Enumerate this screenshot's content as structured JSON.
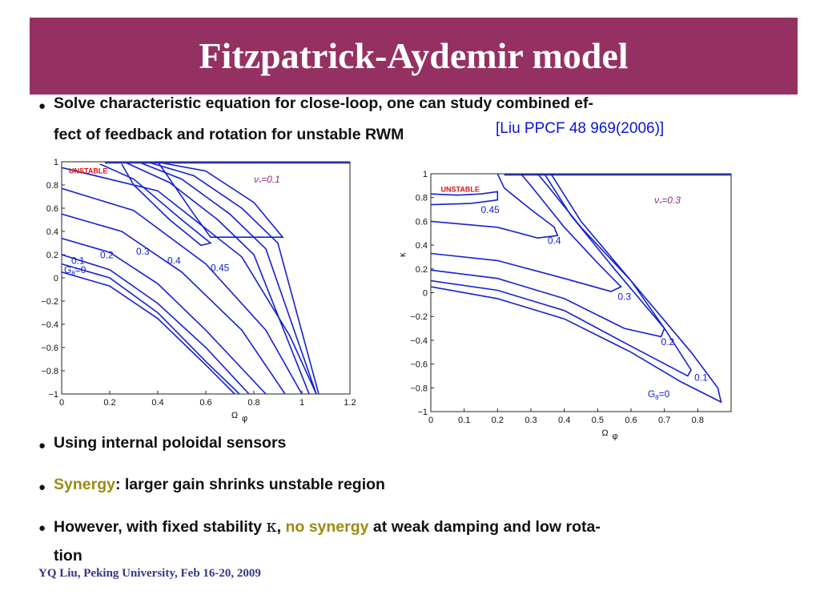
{
  "slide": {
    "title": "Fitzpatrick-Aydemir model",
    "bullets": [
      {
        "line1": "Solve characteristic equation for close-loop, one can study combined ef-",
        "line2": "fect of feedback and rotation for unstable RWM",
        "citation": "[Liu PPCF 48 969(2006)]"
      },
      {
        "text": "Using internal poloidal sensors"
      },
      {
        "highlight": "Synergy",
        "rest": ": larger gain shrinks unstable region"
      },
      {
        "pre": "However, with fixed stability ",
        "kappa": "κ",
        "comma": ",",
        "highlight": "no synergy",
        "post": " at weak damping and low rota-",
        "line2": "tion"
      }
    ],
    "footer": "YQ Liu, Peking University, Feb 16-20, 2009",
    "colors": {
      "title_bar": "#953162",
      "highlight": "#9c8a12",
      "citation": "#0a14d8",
      "curve": "#1521ce"
    }
  },
  "chart_data": [
    {
      "type": "line",
      "title": "",
      "xlabel": "Ω_φ",
      "ylabel": "",
      "xlim": [
        0,
        1.2
      ],
      "ylim": [
        -1,
        1
      ],
      "xticks": [
        "0",
        "0.2",
        "0.4",
        "0.6",
        "0.8",
        "1",
        "1.2"
      ],
      "yticks": [
        "−1",
        "−0.8",
        "−0.6",
        "−0.4",
        "−0.2",
        "0",
        "0.2",
        "0.4",
        "0.6",
        "0.8",
        "1"
      ],
      "annotations": {
        "region": "UNSTABLE",
        "nu": "ν",
        "nu_sub": "*",
        "nu_val": "=0.1",
        "gain_symbol": "G",
        "gain_sub": "θ",
        "gain_val": "=0"
      },
      "contour_labels": [
        {
          "label": "0.1",
          "x": 0.04,
          "y": 0.12
        },
        {
          "label": "0.2",
          "x": 0.16,
          "y": 0.17
        },
        {
          "label": "0.3",
          "x": 0.31,
          "y": 0.2
        },
        {
          "label": "0.4",
          "x": 0.44,
          "y": 0.12
        },
        {
          "label": "0.45",
          "x": 0.62,
          "y": 0.06
        }
      ],
      "series": [
        {
          "label": "0",
          "points": [
            [
              0,
              0.05
            ],
            [
              0.2,
              -0.07
            ],
            [
              0.4,
              -0.35
            ],
            [
              0.6,
              -0.75
            ],
            [
              0.72,
              -1
            ]
          ]
        },
        {
          "label": "0.1",
          "points": [
            [
              0,
              0.12
            ],
            [
              0.2,
              0.0
            ],
            [
              0.4,
              -0.3
            ],
            [
              0.6,
              -0.72
            ],
            [
              0.74,
              -1
            ]
          ]
        },
        {
          "label": "0.1b",
          "points": [
            [
              0,
              0.2
            ],
            [
              0.2,
              0.07
            ],
            [
              0.4,
              -0.22
            ],
            [
              0.6,
              -0.6
            ],
            [
              0.78,
              -1
            ]
          ]
        },
        {
          "label": "0.2",
          "points": [
            [
              0,
              0.34
            ],
            [
              0.2,
              0.22
            ],
            [
              0.4,
              -0.05
            ],
            [
              0.6,
              -0.45
            ],
            [
              0.85,
              -1
            ]
          ]
        },
        {
          "label": "0.3",
          "points": [
            [
              0,
              0.55
            ],
            [
              0.25,
              0.4
            ],
            [
              0.5,
              0.05
            ],
            [
              0.75,
              -0.45
            ],
            [
              0.93,
              -1
            ]
          ]
        },
        {
          "label": "0.4",
          "points": [
            [
              0,
              0.77
            ],
            [
              0.3,
              0.58
            ],
            [
              0.6,
              0.12
            ],
            [
              0.85,
              -0.45
            ],
            [
              1.0,
              -1
            ]
          ]
        },
        {
          "label": "0.45",
          "points": [
            [
              0,
              0.95
            ],
            [
              0.4,
              0.75
            ],
            [
              0.75,
              0.18
            ],
            [
              0.95,
              -0.5
            ],
            [
              1.06,
              -1
            ]
          ]
        },
        {
          "label": "t1",
          "points": [
            [
              0.16,
              0.98
            ],
            [
              0.3,
              0.85
            ],
            [
              0.5,
              0.5
            ],
            [
              0.62,
              0.3
            ],
            [
              0.58,
              0.28
            ],
            [
              0.45,
              0.5
            ],
            [
              0.3,
              0.8
            ],
            [
              0.25,
              0.98
            ]
          ]
        },
        {
          "label": "t2",
          "points": [
            [
              0.27,
              0.99
            ],
            [
              0.45,
              0.82
            ],
            [
              0.65,
              0.5
            ],
            [
              0.8,
              0.2
            ],
            [
              1.03,
              -1
            ]
          ]
        },
        {
          "label": "t3",
          "points": [
            [
              0.33,
              0.99
            ],
            [
              0.5,
              0.85
            ],
            [
              0.7,
              0.55
            ],
            [
              0.85,
              0.25
            ],
            [
              1.06,
              -1
            ]
          ]
        },
        {
          "label": "t4",
          "points": [
            [
              0.37,
              0.99
            ],
            [
              0.55,
              0.88
            ],
            [
              0.75,
              0.6
            ],
            [
              0.9,
              0.3
            ],
            [
              1.07,
              -1
            ]
          ]
        },
        {
          "label": "t5",
          "points": [
            [
              0.39,
              1.0
            ],
            [
              0.6,
              0.92
            ],
            [
              0.8,
              0.65
            ],
            [
              0.92,
              0.35
            ],
            [
              0.62,
              0.35
            ],
            [
              0.55,
              0.55
            ],
            [
              0.45,
              0.85
            ],
            [
              0.4,
              1.0
            ]
          ]
        }
      ]
    },
    {
      "type": "line",
      "title": "",
      "xlabel": "Ω_φ",
      "ylabel": "κ",
      "xlim": [
        0,
        0.9
      ],
      "ylim": [
        -1,
        1
      ],
      "xticks": [
        "0",
        "0.1",
        "0.2",
        "0.3",
        "0.4",
        "0.5",
        "0.6",
        "0.7",
        "0.8"
      ],
      "yticks": [
        "−1",
        "−0.8",
        "−0.6",
        "−0.4",
        "−0.2",
        "0",
        "0.2",
        "0.4",
        "0.6",
        "0.8",
        "1"
      ],
      "annotations": {
        "region": "UNSTABLE",
        "nu": "ν",
        "nu_sub": "*",
        "nu_val": "=0.3",
        "gain_symbol": "G",
        "gain_sub": "θ",
        "gain_val": "=0"
      },
      "contour_labels": [
        {
          "label": "0.45",
          "x": 0.15,
          "y": 0.67
        },
        {
          "label": "0.4",
          "x": 0.35,
          "y": 0.41
        },
        {
          "label": "0.3",
          "x": 0.56,
          "y": -0.06
        },
        {
          "label": "0.2",
          "x": 0.69,
          "y": -0.44
        },
        {
          "label": "0.1",
          "x": 0.79,
          "y": -0.74
        },
        {
          "label": "0",
          "x": 0.71,
          "y": -0.86
        }
      ],
      "series": [
        {
          "label": "0.45",
          "points": [
            [
              0,
              0.83
            ],
            [
              0.08,
              0.82
            ],
            [
              0.15,
              0.83
            ],
            [
              0.2,
              0.85
            ],
            [
              0.2,
              0.78
            ],
            [
              0.12,
              0.75
            ],
            [
              0,
              0.74
            ]
          ]
        },
        {
          "label": "0.4",
          "points": [
            [
              0,
              0.6
            ],
            [
              0.2,
              0.55
            ],
            [
              0.32,
              0.46
            ],
            [
              0.38,
              0.48
            ],
            [
              0.37,
              0.55
            ],
            [
              0.3,
              0.7
            ],
            [
              0.22,
              0.88
            ],
            [
              0.2,
              1.0
            ]
          ]
        },
        {
          "label": "0.3",
          "points": [
            [
              0,
              0.33
            ],
            [
              0.2,
              0.27
            ],
            [
              0.4,
              0.12
            ],
            [
              0.54,
              0.01
            ],
            [
              0.57,
              0.05
            ],
            [
              0.5,
              0.25
            ],
            [
              0.4,
              0.55
            ],
            [
              0.3,
              0.9
            ],
            [
              0.27,
              1.0
            ]
          ]
        },
        {
          "label": "0.2",
          "points": [
            [
              0,
              0.19
            ],
            [
              0.2,
              0.12
            ],
            [
              0.4,
              -0.05
            ],
            [
              0.58,
              -0.3
            ],
            [
              0.69,
              -0.37
            ],
            [
              0.7,
              -0.3
            ],
            [
              0.6,
              0.1
            ],
            [
              0.45,
              0.55
            ],
            [
              0.35,
              0.9
            ],
            [
              0.32,
              1.0
            ]
          ]
        },
        {
          "label": "0.1",
          "points": [
            [
              0,
              0.1
            ],
            [
              0.2,
              0.02
            ],
            [
              0.4,
              -0.15
            ],
            [
              0.6,
              -0.45
            ],
            [
              0.77,
              -0.7
            ],
            [
              0.78,
              -0.65
            ],
            [
              0.7,
              -0.3
            ],
            [
              0.55,
              0.2
            ],
            [
              0.42,
              0.65
            ],
            [
              0.34,
              1.0
            ]
          ]
        },
        {
          "label": "0",
          "points": [
            [
              0,
              0.05
            ],
            [
              0.2,
              -0.05
            ],
            [
              0.4,
              -0.22
            ],
            [
              0.6,
              -0.5
            ],
            [
              0.75,
              -0.75
            ],
            [
              0.87,
              -0.92
            ],
            [
              0.86,
              -0.8
            ],
            [
              0.78,
              -0.5
            ],
            [
              0.6,
              0.1
            ],
            [
              0.45,
              0.6
            ],
            [
              0.36,
              1.0
            ]
          ]
        }
      ]
    }
  ]
}
